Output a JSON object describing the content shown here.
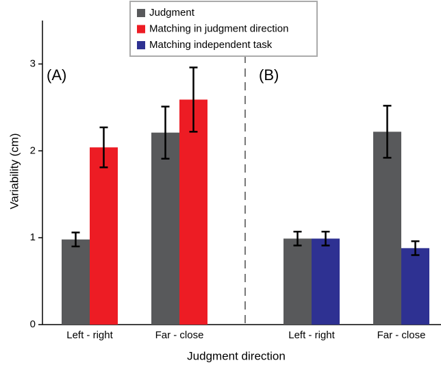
{
  "chart_data": {
    "type": "bar",
    "ylabel": "Variability (cm)",
    "xlabel": "Judgment direction",
    "ylim": [
      0,
      3.5
    ],
    "yticks": [
      0,
      1,
      2,
      3
    ],
    "panels": [
      {
        "label": "(A)"
      },
      {
        "label": "(B)"
      }
    ],
    "categories": [
      "Left - right",
      "Far - close",
      "Left - right",
      "Far - close"
    ],
    "series": [
      {
        "name": "Judgment",
        "color": "#58595b",
        "values": [
          0.98,
          2.21,
          0.99,
          2.22
        ],
        "errors": [
          0.08,
          0.3,
          0.08,
          0.3
        ]
      },
      {
        "name": "Matching in judgment direction",
        "color": "#ed1c24",
        "values": [
          2.04,
          2.59,
          null,
          null
        ],
        "errors": [
          0.23,
          0.37,
          null,
          null
        ]
      },
      {
        "name": "Matching independent task",
        "color": "#2e3192",
        "values": [
          null,
          null,
          0.99,
          0.88
        ],
        "errors": [
          null,
          null,
          0.08,
          0.08
        ]
      }
    ]
  }
}
